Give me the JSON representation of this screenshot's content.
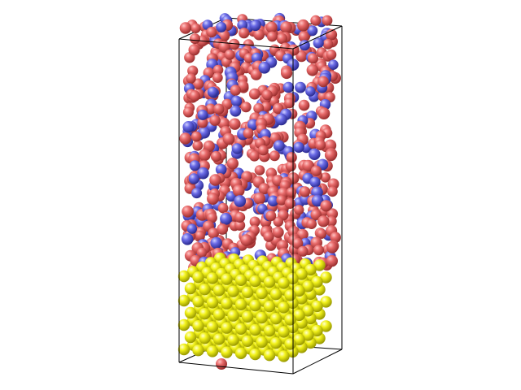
{
  "colors": {
    "background": "#ffffff",
    "box_edge": "#000000",
    "atom_red": "#e06060",
    "atom_blue": "#6666dd",
    "atom_yellow": "#eeee11"
  },
  "species": [
    {
      "name": "red-atom",
      "color": "#e06060"
    },
    {
      "name": "blue-atom",
      "color": "#6666dd"
    },
    {
      "name": "yellow-atom",
      "color": "#eeee11"
    }
  ]
}
